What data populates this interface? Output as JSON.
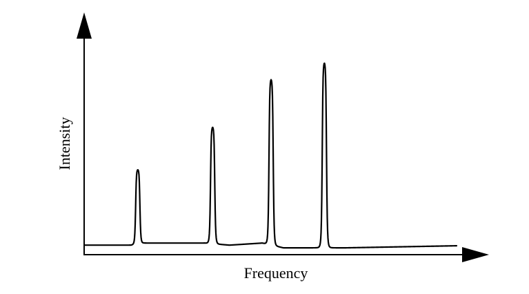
{
  "chart_data": {
    "type": "line",
    "title": "",
    "xlabel": "Frequency",
    "ylabel": "Intensity",
    "xlim": [
      0,
      100
    ],
    "ylim": [
      0,
      100
    ],
    "grid": false,
    "axis_ticks": false,
    "baseline": [
      {
        "x": 0,
        "y": 3.6
      },
      {
        "x": 12.7,
        "y": 3.6
      },
      {
        "x": 16.0,
        "y": 4.6
      },
      {
        "x": 32.3,
        "y": 4.6
      },
      {
        "x": 39.0,
        "y": 3.6
      },
      {
        "x": 47.8,
        "y": 4.6
      },
      {
        "x": 53.5,
        "y": 2.3
      },
      {
        "x": 61.3,
        "y": 2.3
      },
      {
        "x": 70.3,
        "y": 2.3
      },
      {
        "x": 100,
        "y": 3.3
      }
    ],
    "peaks": [
      {
        "x": 14.4,
        "height": 40.0
      },
      {
        "x": 34.5,
        "height": 60.5
      },
      {
        "x": 50.2,
        "height": 83.5
      },
      {
        "x": 64.5,
        "height": 91.5
      }
    ],
    "colors": {
      "line": "#000000",
      "axis": "#000000",
      "background": "#ffffff"
    }
  }
}
